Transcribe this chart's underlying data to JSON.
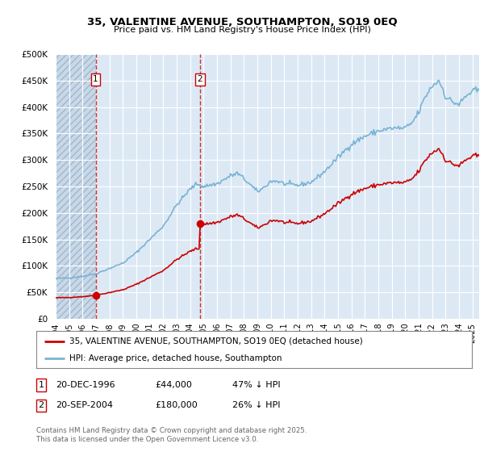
{
  "title": "35, VALENTINE AVENUE, SOUTHAMPTON, SO19 0EQ",
  "subtitle": "Price paid vs. HM Land Registry's House Price Index (HPI)",
  "hpi_color": "#7ab3d4",
  "price_color": "#cc0000",
  "background_color": "#ffffff",
  "plot_bg_color": "#dce9f5",
  "hatch_bg_color": "#c8d8e8",
  "grid_color": "#ffffff",
  "xmin": 1994.0,
  "xmax": 2025.5,
  "ymin": 0,
  "ymax": 500000,
  "yticks": [
    0,
    50000,
    100000,
    150000,
    200000,
    250000,
    300000,
    350000,
    400000,
    450000,
    500000
  ],
  "ytick_labels": [
    "£0",
    "£50K",
    "£100K",
    "£150K",
    "£200K",
    "£250K",
    "£300K",
    "£350K",
    "£400K",
    "£450K",
    "£500K"
  ],
  "xticks": [
    1994,
    1995,
    1996,
    1997,
    1998,
    1999,
    2000,
    2001,
    2002,
    2003,
    2004,
    2005,
    2006,
    2007,
    2008,
    2009,
    2010,
    2011,
    2012,
    2013,
    2014,
    2015,
    2016,
    2017,
    2018,
    2019,
    2020,
    2021,
    2022,
    2023,
    2024,
    2025
  ],
  "transaction1_date": 1996.97,
  "transaction1_price": 44000,
  "transaction2_date": 2004.72,
  "transaction2_price": 180000,
  "legend_label_price": "35, VALENTINE AVENUE, SOUTHAMPTON, SO19 0EQ (detached house)",
  "legend_label_hpi": "HPI: Average price, detached house, Southampton",
  "annotation1_date": "20-DEC-1996",
  "annotation1_price": "£44,000",
  "annotation1_hpi": "47% ↓ HPI",
  "annotation2_date": "20-SEP-2004",
  "annotation2_price": "£180,000",
  "annotation2_hpi": "26% ↓ HPI",
  "footer": "Contains HM Land Registry data © Crown copyright and database right 2025.\nThis data is licensed under the Open Government Licence v3.0."
}
